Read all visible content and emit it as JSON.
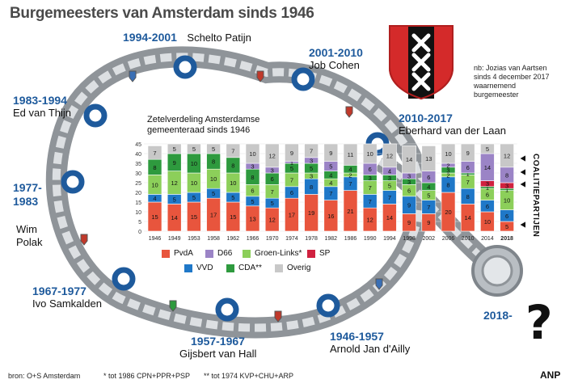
{
  "title": "Burgemeesters van Amsterdam sinds 1946",
  "mayors": [
    {
      "years": "1994-2001",
      "name": "Schelto Patijn"
    },
    {
      "years": "2001-2010",
      "name": "Job Cohen"
    },
    {
      "years": "1983-1994",
      "name": "Ed van Thijn"
    },
    {
      "years": "2010-2017",
      "name": "Eberhard van der Laan"
    },
    {
      "years": "1977-\n1983",
      "name": "Wim\nPolak"
    },
    {
      "years": "1967-1977",
      "name": "Ivo Samkalden"
    },
    {
      "years": "1957-1967",
      "name": "Gijsbert van Hall"
    },
    {
      "years": "1946-1957",
      "name": "Arnold Jan d'Ailly"
    },
    {
      "years": "2018-",
      "name": ""
    }
  ],
  "note": "nb: Jozias van Aartsen\nsinds 4 december 2017\nwaarnemend\nburgemeester",
  "question_mark": "?",
  "coalition_label": "COALITIEPARTIJEN",
  "footer": {
    "source": "bron: O+S Amsterdam",
    "fn1": "* tot 1986 CPN+PPR+PSP",
    "fn2": "** tot 1974 KVP+CHU+ARP",
    "agency": "ANP"
  },
  "colors": {
    "PvdA": "#e8553d",
    "VVD": "#1f78c8",
    "CDA": "#2e9a3e",
    "GroenLinks": "#8ccf5a",
    "D66": "#9b84c6",
    "SP": "#d0213f",
    "Overig": "#c8c8c8",
    "mayor_blue": "#1e5a9c"
  },
  "chart_data": {
    "type": "bar",
    "stacked": true,
    "title": "Zetelverdeling Amsterdamse\ngemeenteraad sinds 1946",
    "ylim": [
      0,
      45
    ],
    "yticks": [
      0,
      5,
      10,
      15,
      20,
      25,
      30,
      35,
      40,
      45
    ],
    "categories": [
      "1946",
      "1949",
      "1953",
      "1958",
      "1962",
      "1966",
      "1970",
      "1974",
      "1978",
      "1982",
      "1986",
      "1990",
      "1994",
      "1998",
      "2002",
      "2006",
      "2010",
      "2014",
      "2018"
    ],
    "series": [
      {
        "name": "PvdA",
        "values": [
          15,
          14,
          15,
          17,
          15,
          13,
          12,
          17,
          19,
          16,
          21,
          12,
          14,
          9,
          9,
          20,
          14,
          10,
          5
        ]
      },
      {
        "name": "VVD",
        "values": [
          4,
          5,
          5,
          5,
          5,
          5,
          5,
          6,
          8,
          7,
          7,
          7,
          7,
          9,
          7,
          8,
          8,
          6,
          6
        ]
      },
      {
        "name": "Groen-Links*",
        "values": [
          10,
          12,
          10,
          10,
          10,
          6,
          7,
          7,
          3,
          4,
          2,
          7,
          5,
          6,
          5,
          2,
          7,
          6,
          10
        ]
      },
      {
        "name": "CDA**",
        "values": [
          8,
          9,
          10,
          8,
          8,
          8,
          6,
          5,
          5,
          4,
          4,
          3,
          3,
          3,
          4,
          3,
          1,
          1,
          1
        ]
      },
      {
        "name": "SP",
        "values": [
          0,
          0,
          0,
          0,
          0,
          0,
          0,
          0,
          0,
          0,
          0,
          0,
          0,
          0,
          0,
          0,
          0,
          3,
          3
        ]
      },
      {
        "name": "D66",
        "values": [
          0,
          0,
          0,
          0,
          0,
          3,
          3,
          1,
          3,
          5,
          0,
          6,
          4,
          3,
          6,
          2,
          6,
          14,
          8
        ]
      },
      {
        "name": "Overig",
        "values": [
          7,
          5,
          5,
          5,
          7,
          10,
          12,
          9,
          7,
          9,
          11,
          10,
          12,
          14,
          13,
          10,
          9,
          5,
          12
        ]
      }
    ],
    "legend": [
      "PvdA",
      "D66",
      "Groen-Links*",
      "SP",
      "VVD",
      "CDA**",
      "Overig"
    ]
  }
}
